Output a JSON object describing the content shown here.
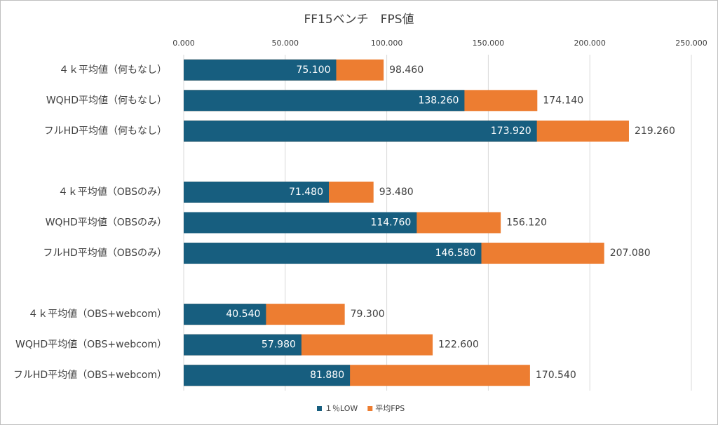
{
  "chart_data": {
    "type": "overlap-bar",
    "title": "FF15ベンチ　FPS値",
    "categories": [
      "４ｋ平均値（何もなし）",
      "WQHD平均値（何もなし）",
      "フルHD平均値（何もなし）",
      null,
      "４ｋ平均値（OBSのみ）",
      "WQHD平均値（OBSのみ）",
      "フルHD平均値（OBSのみ）",
      null,
      "４ｋ平均値（OBS+webcom）",
      "WQHD平均値（OBS+webcom）",
      "フルHD平均値（OBS+webcom）"
    ],
    "series": [
      {
        "name": "平均FPS",
        "color": "#ed7d31",
        "values": [
          98.46,
          174.14,
          219.26,
          null,
          93.48,
          156.12,
          207.08,
          null,
          79.3,
          122.6,
          170.54
        ],
        "value_labels": [
          "98.460",
          "174.140",
          "219.260",
          null,
          "93.480",
          "156.120",
          "207.080",
          null,
          "79.300",
          "122.600",
          "170.540"
        ]
      },
      {
        "name": "１％LOW",
        "color": "#175e7f",
        "values": [
          75.1,
          138.26,
          173.92,
          null,
          71.48,
          114.76,
          146.58,
          null,
          40.54,
          57.98,
          81.88
        ],
        "value_labels": [
          "75.100",
          "138.260",
          "173.920",
          null,
          "71.480",
          "114.760",
          "146.580",
          null,
          "40.540",
          "57.980",
          "81.880"
        ]
      }
    ],
    "xlim": [
      0,
      250
    ],
    "xticks": [
      {
        "value": 0,
        "label": "0.000"
      },
      {
        "value": 50,
        "label": "50.000"
      },
      {
        "value": 100,
        "label": "100.000"
      },
      {
        "value": 150,
        "label": "150.000"
      },
      {
        "value": 200,
        "label": "200.000"
      },
      {
        "value": 250,
        "label": "250.000"
      }
    ],
    "grid": true,
    "legend": "bottom"
  }
}
